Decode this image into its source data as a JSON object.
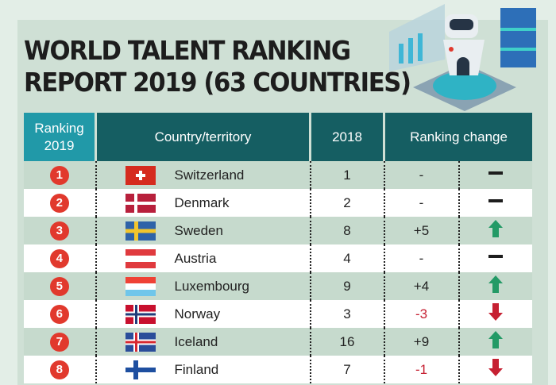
{
  "title_line1": "WORLD TALENT RANKING",
  "title_line2": "REPORT 2019 (63 COUNTRIES)",
  "chart_data": {
    "type": "table",
    "columns": [
      "Ranking 2019",
      "Country/territory",
      "2018",
      "Ranking change"
    ],
    "header": {
      "rank_line1": "Ranking",
      "rank_line2": "2019",
      "country": "Country/territory",
      "prev": "2018",
      "change": "Ranking change"
    },
    "rows": [
      {
        "rank": "1",
        "country": "Switzerland",
        "flag": "switzerland",
        "prev": "1",
        "change": "-",
        "trend": "same"
      },
      {
        "rank": "2",
        "country": "Denmark",
        "flag": "denmark",
        "prev": "2",
        "change": "-",
        "trend": "same"
      },
      {
        "rank": "3",
        "country": "Sweden",
        "flag": "sweden",
        "prev": "8",
        "change": "+5",
        "trend": "up"
      },
      {
        "rank": "4",
        "country": "Austria",
        "flag": "austria",
        "prev": "4",
        "change": "-",
        "trend": "same"
      },
      {
        "rank": "5",
        "country": "Luxembourg",
        "flag": "luxembourg",
        "prev": "9",
        "change": "+4",
        "trend": "up"
      },
      {
        "rank": "6",
        "country": "Norway",
        "flag": "norway",
        "prev": "3",
        "change": "-3",
        "trend": "down"
      },
      {
        "rank": "7",
        "country": "Iceland",
        "flag": "iceland",
        "prev": "16",
        "change": "+9",
        "trend": "up"
      },
      {
        "rank": "8",
        "country": "Finland",
        "flag": "finland",
        "prev": "7",
        "change": "-1",
        "trend": "down"
      }
    ]
  },
  "colors": {
    "up": "#239a66",
    "down": "#c62032",
    "same": "#1d1d1d",
    "badge": "#e1392d",
    "header_dark": "#155e62",
    "header_light": "#2199a8"
  }
}
